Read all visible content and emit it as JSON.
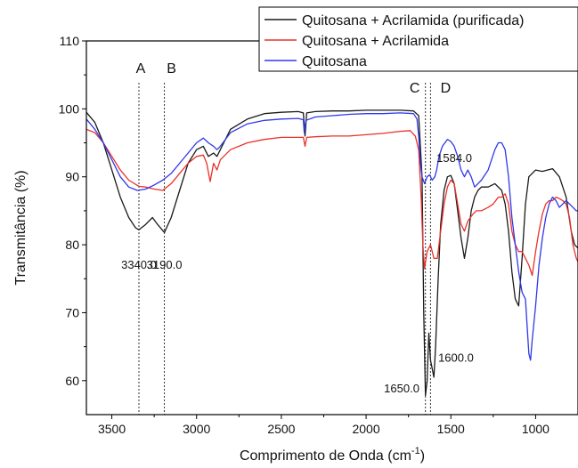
{
  "chart_data": {
    "type": "line",
    "xlabel": "Comprimento de Onda (cm",
    "xlabel_sup": "-1",
    "xlabel_end": ")",
    "ylabel": "Transmitância (%)",
    "xlim": [
      3650,
      750
    ],
    "ylim": [
      55,
      110
    ],
    "x_reversed": true,
    "xticks": [
      {
        "value": 3500,
        "label": "3500"
      },
      {
        "value": 3000,
        "label": "3000"
      },
      {
        "value": 2500,
        "label": "2500"
      },
      {
        "value": 2000,
        "label": "2000"
      },
      {
        "value": 1500,
        "label": "1500"
      },
      {
        "value": 1000,
        "label": "1000"
      }
    ],
    "yticks": [
      {
        "value": 60,
        "label": "60"
      },
      {
        "value": 70,
        "label": "70"
      },
      {
        "value": 80,
        "label": "80"
      },
      {
        "value": 90,
        "label": "90"
      },
      {
        "value": 100,
        "label": "100"
      },
      {
        "value": 110,
        "label": "110"
      }
    ],
    "legend_position": "top-right",
    "series": [
      {
        "name": "Quitosana + Acrilamida (purificada)",
        "color": "#1a1a1a",
        "points": [
          [
            3650,
            99.5
          ],
          [
            3600,
            98
          ],
          [
            3550,
            95
          ],
          [
            3500,
            91
          ],
          [
            3450,
            87
          ],
          [
            3400,
            84
          ],
          [
            3360,
            82.5
          ],
          [
            3340,
            82.2
          ],
          [
            3300,
            83
          ],
          [
            3260,
            84
          ],
          [
            3230,
            83
          ],
          [
            3190,
            81.8
          ],
          [
            3150,
            84
          ],
          [
            3100,
            88
          ],
          [
            3050,
            92
          ],
          [
            3000,
            94
          ],
          [
            2960,
            94.5
          ],
          [
            2930,
            93
          ],
          [
            2900,
            93.5
          ],
          [
            2880,
            93
          ],
          [
            2860,
            94
          ],
          [
            2800,
            97
          ],
          [
            2700,
            98.5
          ],
          [
            2600,
            99.3
          ],
          [
            2500,
            99.5
          ],
          [
            2400,
            99.6
          ],
          [
            2370,
            99.4
          ],
          [
            2360,
            96
          ],
          [
            2350,
            99.4
          ],
          [
            2300,
            99.6
          ],
          [
            2200,
            99.7
          ],
          [
            2100,
            99.7
          ],
          [
            2000,
            99.8
          ],
          [
            1900,
            99.8
          ],
          [
            1800,
            99.8
          ],
          [
            1720,
            99.7
          ],
          [
            1690,
            99
          ],
          [
            1670,
            90
          ],
          [
            1660,
            70
          ],
          [
            1650,
            57.8
          ],
          [
            1640,
            60
          ],
          [
            1630,
            67
          ],
          [
            1620,
            63
          ],
          [
            1600,
            60.5
          ],
          [
            1590,
            65
          ],
          [
            1575,
            75
          ],
          [
            1560,
            83
          ],
          [
            1540,
            88
          ],
          [
            1520,
            90
          ],
          [
            1500,
            90.2
          ],
          [
            1480,
            89
          ],
          [
            1460,
            85
          ],
          [
            1440,
            81
          ],
          [
            1420,
            78
          ],
          [
            1400,
            81
          ],
          [
            1380,
            85
          ],
          [
            1360,
            87
          ],
          [
            1340,
            88
          ],
          [
            1320,
            88.5
          ],
          [
            1280,
            88.5
          ],
          [
            1240,
            89
          ],
          [
            1200,
            88
          ],
          [
            1180,
            86
          ],
          [
            1160,
            82
          ],
          [
            1140,
            76
          ],
          [
            1120,
            72
          ],
          [
            1100,
            71
          ],
          [
            1080,
            78
          ],
          [
            1060,
            86
          ],
          [
            1040,
            90
          ],
          [
            1000,
            91
          ],
          [
            960,
            90.8
          ],
          [
            900,
            91.2
          ],
          [
            860,
            90
          ],
          [
            820,
            87
          ],
          [
            790,
            82
          ],
          [
            770,
            80
          ],
          [
            750,
            79.5
          ]
        ]
      },
      {
        "name": "Quitosana + Acrilamida",
        "color": "#e8312a",
        "points": [
          [
            3650,
            97
          ],
          [
            3600,
            96.5
          ],
          [
            3550,
            95
          ],
          [
            3500,
            93
          ],
          [
            3450,
            91
          ],
          [
            3400,
            89.5
          ],
          [
            3340,
            88.6
          ],
          [
            3300,
            88.5
          ],
          [
            3250,
            88.2
          ],
          [
            3200,
            88
          ],
          [
            3150,
            89
          ],
          [
            3100,
            90.5
          ],
          [
            3050,
            92
          ],
          [
            3000,
            93
          ],
          [
            2960,
            93.2
          ],
          [
            2940,
            92
          ],
          [
            2920,
            89.3
          ],
          [
            2900,
            92
          ],
          [
            2880,
            91
          ],
          [
            2860,
            92.5
          ],
          [
            2800,
            94
          ],
          [
            2700,
            95
          ],
          [
            2600,
            95.5
          ],
          [
            2500,
            95.8
          ],
          [
            2400,
            95.8
          ],
          [
            2370,
            95.8
          ],
          [
            2360,
            94.5
          ],
          [
            2350,
            95.8
          ],
          [
            2300,
            95.9
          ],
          [
            2200,
            96
          ],
          [
            2100,
            96
          ],
          [
            2000,
            96.2
          ],
          [
            1900,
            96.4
          ],
          [
            1800,
            96.7
          ],
          [
            1740,
            96.8
          ],
          [
            1710,
            96
          ],
          [
            1690,
            94
          ],
          [
            1675,
            87
          ],
          [
            1665,
            80
          ],
          [
            1655,
            76.5
          ],
          [
            1640,
            79
          ],
          [
            1620,
            80
          ],
          [
            1600,
            78
          ],
          [
            1580,
            78
          ],
          [
            1560,
            82
          ],
          [
            1540,
            86
          ],
          [
            1520,
            88.5
          ],
          [
            1500,
            89.5
          ],
          [
            1480,
            89
          ],
          [
            1460,
            86
          ],
          [
            1440,
            83
          ],
          [
            1420,
            82
          ],
          [
            1400,
            83.5
          ],
          [
            1370,
            84.5
          ],
          [
            1350,
            85
          ],
          [
            1320,
            85
          ],
          [
            1280,
            85.5
          ],
          [
            1250,
            86
          ],
          [
            1220,
            87
          ],
          [
            1200,
            87
          ],
          [
            1180,
            87.5
          ],
          [
            1160,
            86
          ],
          [
            1140,
            82
          ],
          [
            1120,
            80
          ],
          [
            1100,
            79
          ],
          [
            1080,
            79
          ],
          [
            1060,
            78
          ],
          [
            1040,
            77
          ],
          [
            1020,
            75.5
          ],
          [
            1000,
            79
          ],
          [
            980,
            82
          ],
          [
            960,
            84.5
          ],
          [
            940,
            86
          ],
          [
            920,
            86.5
          ],
          [
            900,
            86.5
          ],
          [
            880,
            87
          ],
          [
            860,
            86.8
          ],
          [
            840,
            86.5
          ],
          [
            820,
            86
          ],
          [
            800,
            84
          ],
          [
            780,
            80
          ],
          [
            760,
            78
          ],
          [
            750,
            77.5
          ]
        ]
      },
      {
        "name": "Quitosana",
        "color": "#2f38e8",
        "points": [
          [
            3650,
            98.5
          ],
          [
            3600,
            97
          ],
          [
            3550,
            95
          ],
          [
            3500,
            92.5
          ],
          [
            3450,
            90
          ],
          [
            3400,
            88.5
          ],
          [
            3350,
            88
          ],
          [
            3300,
            88.2
          ],
          [
            3250,
            88.8
          ],
          [
            3200,
            89.5
          ],
          [
            3150,
            90.5
          ],
          [
            3100,
            92
          ],
          [
            3050,
            93.5
          ],
          [
            3000,
            95
          ],
          [
            2960,
            95.7
          ],
          [
            2930,
            95
          ],
          [
            2900,
            94.5
          ],
          [
            2880,
            94
          ],
          [
            2860,
            94.5
          ],
          [
            2800,
            96.5
          ],
          [
            2700,
            97.8
          ],
          [
            2600,
            98.3
          ],
          [
            2500,
            98.5
          ],
          [
            2400,
            98.6
          ],
          [
            2370,
            98.4
          ],
          [
            2365,
            96.5
          ],
          [
            2355,
            98.3
          ],
          [
            2300,
            98.8
          ],
          [
            2200,
            99
          ],
          [
            2100,
            99.2
          ],
          [
            2000,
            99.3
          ],
          [
            1900,
            99.3
          ],
          [
            1800,
            99.4
          ],
          [
            1720,
            99.3
          ],
          [
            1700,
            98.5
          ],
          [
            1690,
            96
          ],
          [
            1680,
            92
          ],
          [
            1670,
            90
          ],
          [
            1655,
            89
          ],
          [
            1640,
            90
          ],
          [
            1625,
            90.3
          ],
          [
            1610,
            89.5
          ],
          [
            1595,
            90
          ],
          [
            1584,
            91
          ],
          [
            1570,
            93
          ],
          [
            1550,
            94.5
          ],
          [
            1520,
            95.5
          ],
          [
            1500,
            95.2
          ],
          [
            1480,
            94.5
          ],
          [
            1460,
            93
          ],
          [
            1440,
            91
          ],
          [
            1420,
            90
          ],
          [
            1400,
            91
          ],
          [
            1380,
            90
          ],
          [
            1360,
            88.5
          ],
          [
            1340,
            89
          ],
          [
            1320,
            89.5
          ],
          [
            1280,
            91
          ],
          [
            1260,
            92.5
          ],
          [
            1240,
            94
          ],
          [
            1220,
            95
          ],
          [
            1200,
            95
          ],
          [
            1180,
            94
          ],
          [
            1160,
            90
          ],
          [
            1140,
            84
          ],
          [
            1120,
            80
          ],
          [
            1100,
            76
          ],
          [
            1080,
            73
          ],
          [
            1060,
            72
          ],
          [
            1050,
            68
          ],
          [
            1040,
            64
          ],
          [
            1030,
            63
          ],
          [
            1020,
            66
          ],
          [
            1000,
            71
          ],
          [
            980,
            77
          ],
          [
            960,
            81
          ],
          [
            940,
            84
          ],
          [
            920,
            86
          ],
          [
            900,
            87
          ],
          [
            880,
            86.5
          ],
          [
            860,
            85.5
          ],
          [
            840,
            86
          ],
          [
            820,
            86.5
          ],
          [
            800,
            86
          ],
          [
            780,
            85.5
          ],
          [
            760,
            85
          ],
          [
            750,
            85
          ]
        ]
      }
    ],
    "markers": [
      {
        "label": "A",
        "x": 3340
      },
      {
        "label": "B",
        "x": 3190
      },
      {
        "label": "C",
        "x": 1650
      },
      {
        "label": "D",
        "x": 1620
      }
    ],
    "annotations": [
      {
        "text": "3340.0",
        "x": 3340,
        "y": 76.5
      },
      {
        "text": "3190.0",
        "x": 3190,
        "y": 76.5
      },
      {
        "text": "1584.0",
        "x": 1480,
        "y": 92.2
      },
      {
        "text": "1650.0",
        "x": 1790,
        "y": 58.3
      },
      {
        "text": "1600.0",
        "x": 1470,
        "y": 62.8
      }
    ]
  }
}
